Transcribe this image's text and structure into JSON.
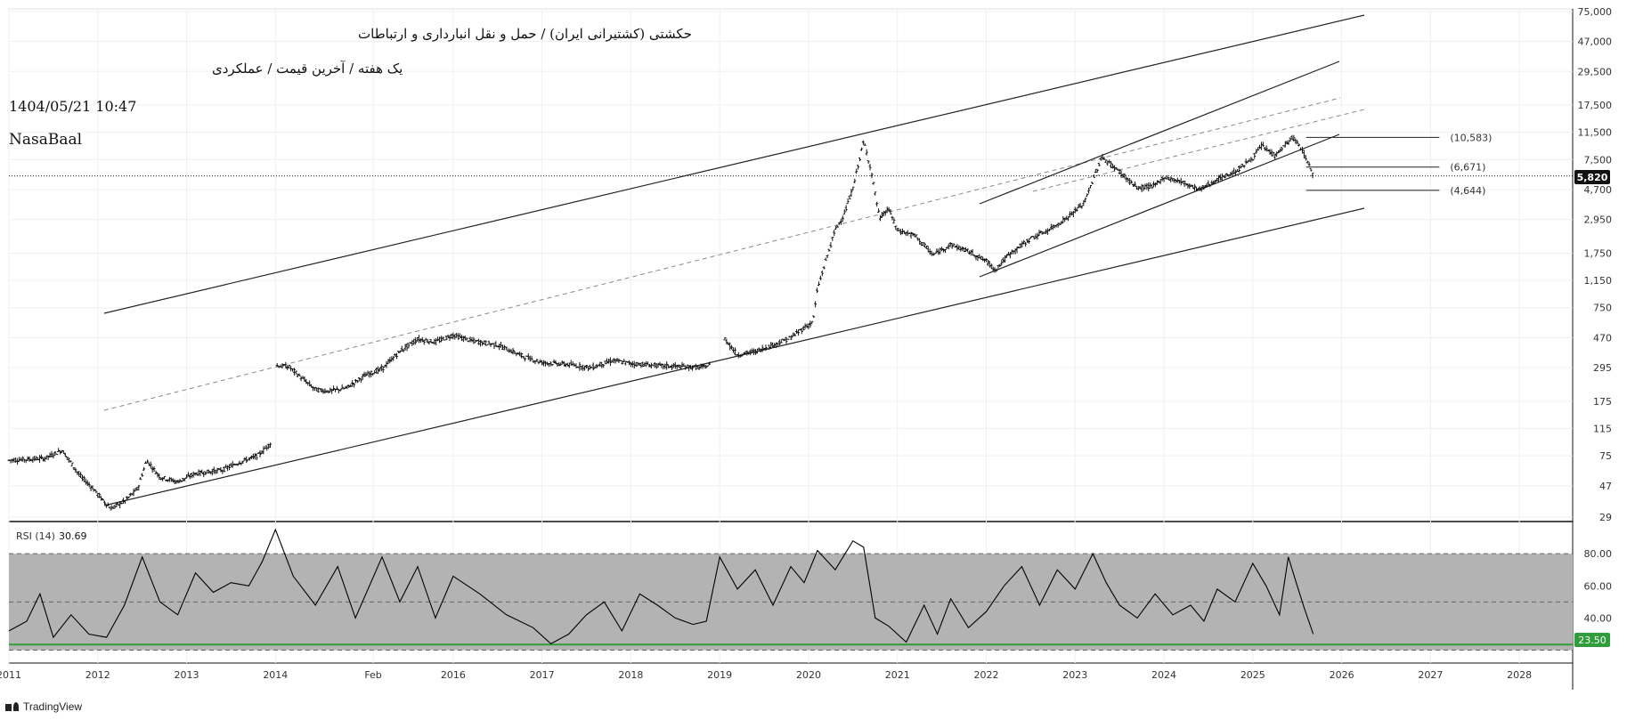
{
  "header": {
    "title": "حکشتی (کشتیرانی ایران) / حمل و نقل انبارداری و ارتباطات",
    "subtitle": "یک هفته / آخرین قیمت / عملکردی",
    "datetime": "1404/05/21 10:47",
    "author": "NasaBaal"
  },
  "branding": {
    "logo_text": "TradingView"
  },
  "colors": {
    "candle": "#111111",
    "trendline": "#222222",
    "dashed": "#8a8a8a",
    "rsi_band": "#b3b3b3",
    "rsi_line": "#000000",
    "rsi_support": "#2e9e3a",
    "price_tag_bg": "#111111",
    "rsi_tag_bg": "#2e9e3a"
  },
  "chart_data": [
    {
      "type": "candlestick",
      "scale": "log",
      "xlim": [
        2011.0,
        2028.6
      ],
      "ylim": [
        27,
        78000
      ],
      "x_tick_labels": [
        "2011",
        "2012",
        "2013",
        "2014",
        "Feb",
        "2016",
        "2017",
        "2018",
        "2019",
        "2020",
        "2021",
        "2022",
        "2023",
        "2024",
        "2025",
        "2026",
        "2027",
        "2028"
      ],
      "x_tick_values": [
        2011.0,
        2012.0,
        2013.0,
        2014.0,
        2015.1,
        2016.0,
        2017.0,
        2018.0,
        2019.0,
        2020.0,
        2021.0,
        2022.0,
        2023.0,
        2024.0,
        2025.0,
        2026.0,
        2027.0,
        2028.0
      ],
      "y_ticks": [
        29,
        47,
        75,
        115,
        175,
        295,
        470,
        750,
        1150,
        1750,
        2950,
        4700,
        7500,
        11500,
        17500,
        29500,
        47000,
        75000
      ],
      "y_tick_labels": [
        "29",
        "47",
        "75",
        "115",
        "175",
        "295",
        "470",
        "750",
        "1,150",
        "1,750",
        "2,950",
        "4,700",
        "7,500",
        "11,500",
        "17,500",
        "29,500",
        "47,000",
        "75,000"
      ],
      "last_price": 5820,
      "last_price_label": "5,820",
      "series_path": [
        [
          2011.0,
          70
        ],
        [
          2011.4,
          72
        ],
        [
          2011.6,
          82
        ],
        [
          2011.8,
          55
        ],
        [
          2011.95,
          45
        ],
        [
          2012.05,
          38
        ],
        [
          2012.15,
          33
        ],
        [
          2012.3,
          37
        ],
        [
          2012.45,
          45
        ],
        [
          2012.55,
          70
        ],
        [
          2012.7,
          54
        ],
        [
          2012.9,
          50
        ],
        [
          2013.1,
          57
        ],
        [
          2013.4,
          60
        ],
        [
          2013.6,
          68
        ],
        [
          2013.8,
          75
        ],
        [
          2013.95,
          92
        ],
        [
          2014.0,
          305
        ],
        [
          2014.15,
          300
        ],
        [
          2014.3,
          250
        ],
        [
          2014.45,
          210
        ],
        [
          2014.6,
          205
        ],
        [
          2014.8,
          215
        ],
        [
          2015.0,
          260
        ],
        [
          2015.2,
          290
        ],
        [
          2015.4,
          380
        ],
        [
          2015.6,
          460
        ],
        [
          2015.8,
          440
        ],
        [
          2016.0,
          490
        ],
        [
          2016.2,
          450
        ],
        [
          2016.5,
          420
        ],
        [
          2016.8,
          350
        ],
        [
          2017.0,
          320
        ],
        [
          2017.3,
          310
        ],
        [
          2017.55,
          295
        ],
        [
          2017.8,
          330
        ],
        [
          2018.0,
          315
        ],
        [
          2018.3,
          305
        ],
        [
          2018.6,
          300
        ],
        [
          2018.8,
          295
        ],
        [
          2018.9,
          310
        ],
        [
          2019.05,
          470
        ],
        [
          2019.2,
          360
        ],
        [
          2019.4,
          380
        ],
        [
          2019.6,
          420
        ],
        [
          2019.8,
          470
        ],
        [
          2019.95,
          550
        ],
        [
          2020.05,
          600
        ],
        [
          2020.1,
          1000
        ],
        [
          2020.2,
          1600
        ],
        [
          2020.3,
          2500
        ],
        [
          2020.4,
          3200
        ],
        [
          2020.5,
          4800
        ],
        [
          2020.62,
          10000
        ],
        [
          2020.7,
          6500
        ],
        [
          2020.8,
          3000
        ],
        [
          2020.9,
          3500
        ],
        [
          2021.0,
          2500
        ],
        [
          2021.2,
          2300
        ],
        [
          2021.4,
          1700
        ],
        [
          2021.6,
          2000
        ],
        [
          2021.8,
          1800
        ],
        [
          2022.0,
          1550
        ],
        [
          2022.1,
          1350
        ],
        [
          2022.25,
          1700
        ],
        [
          2022.5,
          2200
        ],
        [
          2022.7,
          2500
        ],
        [
          2022.9,
          3000
        ],
        [
          2023.1,
          3800
        ],
        [
          2023.3,
          7800
        ],
        [
          2023.5,
          6200
        ],
        [
          2023.7,
          4800
        ],
        [
          2023.9,
          5000
        ],
        [
          2024.0,
          5700
        ],
        [
          2024.2,
          5300
        ],
        [
          2024.4,
          4700
        ],
        [
          2024.6,
          5500
        ],
        [
          2024.8,
          6200
        ],
        [
          2025.0,
          7700
        ],
        [
          2025.1,
          9300
        ],
        [
          2025.25,
          8000
        ],
        [
          2025.45,
          10600
        ],
        [
          2025.55,
          8800
        ],
        [
          2025.62,
          7200
        ],
        [
          2025.68,
          5820
        ]
      ],
      "segment_breaks": [
        2013.95,
        2018.9
      ],
      "levels": [
        {
          "label": "(10,583)",
          "value": 10583
        },
        {
          "label": "(6,671)",
          "value": 6671
        },
        {
          "label": "(4,644)",
          "value": 4644
        }
      ]
    },
    {
      "type": "line",
      "title": "RSI (14)",
      "current_value_label": "30.69",
      "ylim": [
        12,
        100
      ],
      "y_ticks": [
        40,
        60,
        80
      ],
      "y_tick_labels": [
        "40.00",
        "60.00",
        "80.00"
      ],
      "band": [
        20,
        80
      ],
      "midline": 50,
      "support_level": 23.5,
      "support_label": "23.50",
      "x": [
        2011.0,
        2011.2,
        2011.35,
        2011.5,
        2011.7,
        2011.9,
        2012.1,
        2012.3,
        2012.5,
        2012.7,
        2012.9,
        2013.1,
        2013.3,
        2013.5,
        2013.7,
        2013.85,
        2014.0,
        2014.2,
        2014.45,
        2014.7,
        2014.9,
        2015.2,
        2015.4,
        2015.6,
        2015.8,
        2016.0,
        2016.3,
        2016.6,
        2016.9,
        2017.1,
        2017.3,
        2017.5,
        2017.7,
        2017.9,
        2018.1,
        2018.3,
        2018.5,
        2018.7,
        2018.85,
        2019.0,
        2019.2,
        2019.4,
        2019.6,
        2019.8,
        2019.95,
        2020.1,
        2020.3,
        2020.5,
        2020.62,
        2020.75,
        2020.9,
        2021.1,
        2021.3,
        2021.45,
        2021.6,
        2021.8,
        2022.0,
        2022.2,
        2022.4,
        2022.6,
        2022.8,
        2023.0,
        2023.2,
        2023.35,
        2023.5,
        2023.7,
        2023.9,
        2024.1,
        2024.3,
        2024.45,
        2024.6,
        2024.8,
        2025.0,
        2025.15,
        2025.3,
        2025.4,
        2025.5,
        2025.58,
        2025.68
      ],
      "values": [
        32,
        38,
        55,
        28,
        42,
        30,
        28,
        48,
        78,
        50,
        42,
        68,
        56,
        62,
        60,
        75,
        95,
        66,
        48,
        72,
        40,
        78,
        50,
        72,
        40,
        66,
        55,
        42,
        34,
        24,
        30,
        42,
        50,
        32,
        55,
        48,
        40,
        36,
        38,
        78,
        58,
        70,
        48,
        72,
        62,
        82,
        70,
        88,
        84,
        40,
        35,
        25,
        48,
        30,
        52,
        34,
        44,
        60,
        72,
        48,
        70,
        58,
        80,
        62,
        48,
        40,
        55,
        42,
        48,
        38,
        58,
        50,
        74,
        60,
        42,
        78,
        60,
        46,
        30
      ]
    }
  ]
}
